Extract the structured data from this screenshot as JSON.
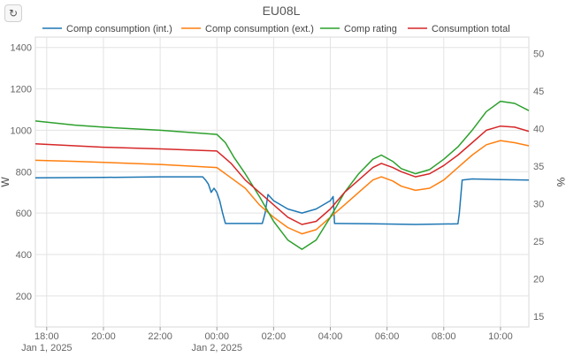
{
  "toolbar": {
    "reset_icon": "refresh-icon",
    "reset_glyph": "↻"
  },
  "chart_data": {
    "type": "line",
    "title": "EU08L",
    "ylabel": "W",
    "y2label": "%",
    "ylim": [
      50,
      1450
    ],
    "y2lim": [
      13.6,
      52.2
    ],
    "yticks": [
      200,
      400,
      600,
      800,
      1000,
      1200,
      1400
    ],
    "y2ticks": [
      15,
      20,
      25,
      30,
      35,
      40,
      45,
      50
    ],
    "xlim": [
      -6.4,
      11.0
    ],
    "xticks": [
      {
        "x": -6,
        "label": "18:00",
        "sublabel": "Jan 1, 2025"
      },
      {
        "x": -4,
        "label": "20:00",
        "sublabel": ""
      },
      {
        "x": -2,
        "label": "22:00",
        "sublabel": ""
      },
      {
        "x": 0,
        "label": "00:00",
        "sublabel": "Jan 2, 2025"
      },
      {
        "x": 2,
        "label": "02:00",
        "sublabel": ""
      },
      {
        "x": 4,
        "label": "04:00",
        "sublabel": ""
      },
      {
        "x": 6,
        "label": "06:00",
        "sublabel": ""
      },
      {
        "x": 8,
        "label": "08:00",
        "sublabel": ""
      },
      {
        "x": 10,
        "label": "10:00",
        "sublabel": ""
      }
    ],
    "grid": true,
    "legend_position": "top",
    "series": [
      {
        "name": "Comp consumption (int.)",
        "color": "#1f77b4",
        "points": [
          [
            -6.4,
            770
          ],
          [
            -4,
            772
          ],
          [
            -2,
            775
          ],
          [
            -0.5,
            775
          ],
          [
            -0.4,
            760
          ],
          [
            -0.3,
            740
          ],
          [
            -0.2,
            700
          ],
          [
            -0.1,
            720
          ],
          [
            0,
            700
          ],
          [
            0.1,
            660
          ],
          [
            0.2,
            600
          ],
          [
            0.3,
            550
          ],
          [
            1.6,
            550
          ],
          [
            1.7,
            600
          ],
          [
            1.8,
            690
          ],
          [
            2,
            660
          ],
          [
            2.5,
            620
          ],
          [
            3,
            600
          ],
          [
            3.5,
            620
          ],
          [
            4.0,
            660
          ],
          [
            4.1,
            680
          ],
          [
            4.15,
            550
          ],
          [
            5.5,
            548
          ],
          [
            7,
            545
          ],
          [
            8.5,
            548
          ],
          [
            8.55,
            600
          ],
          [
            8.65,
            760
          ],
          [
            9,
            765
          ],
          [
            10,
            762
          ],
          [
            11,
            760
          ]
        ]
      },
      {
        "name": "Comp consumption (ext.)",
        "color": "#ff7f0e",
        "points": [
          [
            -6.4,
            855
          ],
          [
            -5,
            850
          ],
          [
            -4,
            845
          ],
          [
            -2,
            835
          ],
          [
            0,
            820
          ],
          [
            0.5,
            770
          ],
          [
            1,
            720
          ],
          [
            1.5,
            640
          ],
          [
            2,
            580
          ],
          [
            2.5,
            530
          ],
          [
            3,
            500
          ],
          [
            3.5,
            520
          ],
          [
            4,
            580
          ],
          [
            4.5,
            640
          ],
          [
            5,
            700
          ],
          [
            5.5,
            760
          ],
          [
            5.8,
            775
          ],
          [
            6.2,
            755
          ],
          [
            6.5,
            730
          ],
          [
            7,
            710
          ],
          [
            7.5,
            720
          ],
          [
            8,
            760
          ],
          [
            8.5,
            820
          ],
          [
            9,
            880
          ],
          [
            9.5,
            930
          ],
          [
            10,
            950
          ],
          [
            10.5,
            940
          ],
          [
            11,
            925
          ]
        ]
      },
      {
        "name": "Comp rating",
        "color": "#2ca02c",
        "points": [
          [
            -6.4,
            1045
          ],
          [
            -5,
            1025
          ],
          [
            -4,
            1015
          ],
          [
            -2,
            1000
          ],
          [
            0,
            980
          ],
          [
            0.3,
            940
          ],
          [
            0.6,
            870
          ],
          [
            1,
            790
          ],
          [
            1.5,
            680
          ],
          [
            2,
            560
          ],
          [
            2.5,
            470
          ],
          [
            3,
            425
          ],
          [
            3.5,
            470
          ],
          [
            4,
            580
          ],
          [
            4.5,
            700
          ],
          [
            5,
            790
          ],
          [
            5.5,
            860
          ],
          [
            5.8,
            880
          ],
          [
            6.2,
            850
          ],
          [
            6.5,
            815
          ],
          [
            7,
            790
          ],
          [
            7.5,
            810
          ],
          [
            8,
            860
          ],
          [
            8.5,
            920
          ],
          [
            9,
            1000
          ],
          [
            9.5,
            1090
          ],
          [
            10,
            1140
          ],
          [
            10.5,
            1130
          ],
          [
            11,
            1095
          ]
        ]
      },
      {
        "name": "Consumption total",
        "color": "#d62728",
        "points": [
          [
            -6.4,
            935
          ],
          [
            -5,
            925
          ],
          [
            -4,
            918
          ],
          [
            -2,
            910
          ],
          [
            0,
            900
          ],
          [
            0.5,
            840
          ],
          [
            1,
            760
          ],
          [
            1.5,
            700
          ],
          [
            2,
            640
          ],
          [
            2.5,
            580
          ],
          [
            3,
            545
          ],
          [
            3.5,
            560
          ],
          [
            4,
            620
          ],
          [
            4.5,
            700
          ],
          [
            5,
            760
          ],
          [
            5.5,
            820
          ],
          [
            5.8,
            840
          ],
          [
            6.2,
            820
          ],
          [
            6.5,
            800
          ],
          [
            7,
            775
          ],
          [
            7.5,
            790
          ],
          [
            8,
            830
          ],
          [
            8.5,
            880
          ],
          [
            9,
            940
          ],
          [
            9.5,
            1000
          ],
          [
            10,
            1020
          ],
          [
            10.5,
            1015
          ],
          [
            11,
            995
          ]
        ]
      }
    ]
  }
}
